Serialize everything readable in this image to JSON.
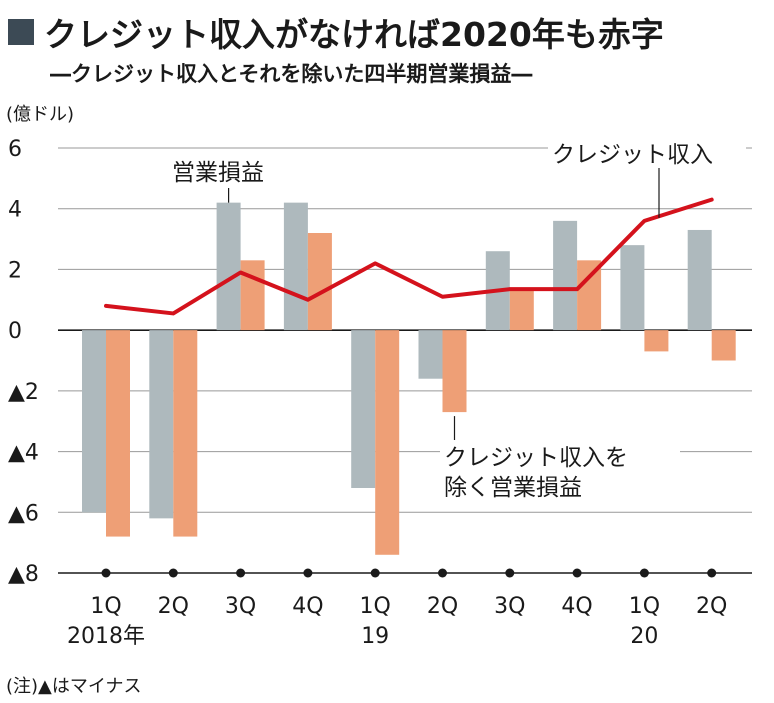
{
  "header": {
    "title": "クレジット収入がなければ2020年も赤字",
    "subtitle": "―クレジット収入とそれを除いた四半期営業損益―"
  },
  "unit_label": "(億ドル)",
  "note": "(注)▲はマイナス",
  "colors": {
    "operating": "#aeb9bd",
    "excluding": "#ee9f76",
    "credit": "#d4121c",
    "grid": "#999999",
    "title_square": "#3c4a55"
  },
  "chart_data": {
    "type": "bar",
    "title": "クレジット収入がなければ2020年も赤字",
    "subtitle": "―クレジット収入とそれを除いた四半期営業損益―",
    "ylabel": "(億ドル)",
    "ylim": [
      -8,
      6
    ],
    "y_ticks": [
      6,
      4,
      2,
      0,
      -2,
      -4,
      -6,
      -8
    ],
    "y_tick_labels": [
      "6",
      "4",
      "2",
      "0",
      "▲2",
      "▲4",
      "▲6",
      "▲8"
    ],
    "categories": [
      "1Q",
      "2Q",
      "3Q",
      "4Q",
      "1Q",
      "2Q",
      "3Q",
      "4Q",
      "1Q",
      "2Q"
    ],
    "year_labels": [
      {
        "index": 0,
        "label": "2018年"
      },
      {
        "index": 4,
        "label": "19"
      },
      {
        "index": 8,
        "label": "20"
      }
    ],
    "grid": true,
    "series": [
      {
        "name": "営業損益",
        "type": "bar",
        "values": [
          -6.0,
          -6.2,
          4.2,
          4.2,
          -5.2,
          -1.6,
          2.6,
          3.6,
          2.8,
          3.3
        ]
      },
      {
        "name": "クレジット収入を除く営業損益",
        "type": "bar",
        "values": [
          -6.8,
          -6.8,
          2.3,
          3.2,
          -7.4,
          -2.7,
          1.3,
          2.3,
          -0.7,
          -1.0
        ]
      },
      {
        "name": "クレジット収入",
        "type": "line",
        "values": [
          0.8,
          0.55,
          1.9,
          1.0,
          2.2,
          1.1,
          1.35,
          1.35,
          3.6,
          4.3
        ]
      }
    ],
    "annotations": {
      "operating": "営業損益",
      "credit": "クレジット収入",
      "excluding_line1": "クレジット収入を",
      "excluding_line2": "除く営業損益"
    }
  }
}
